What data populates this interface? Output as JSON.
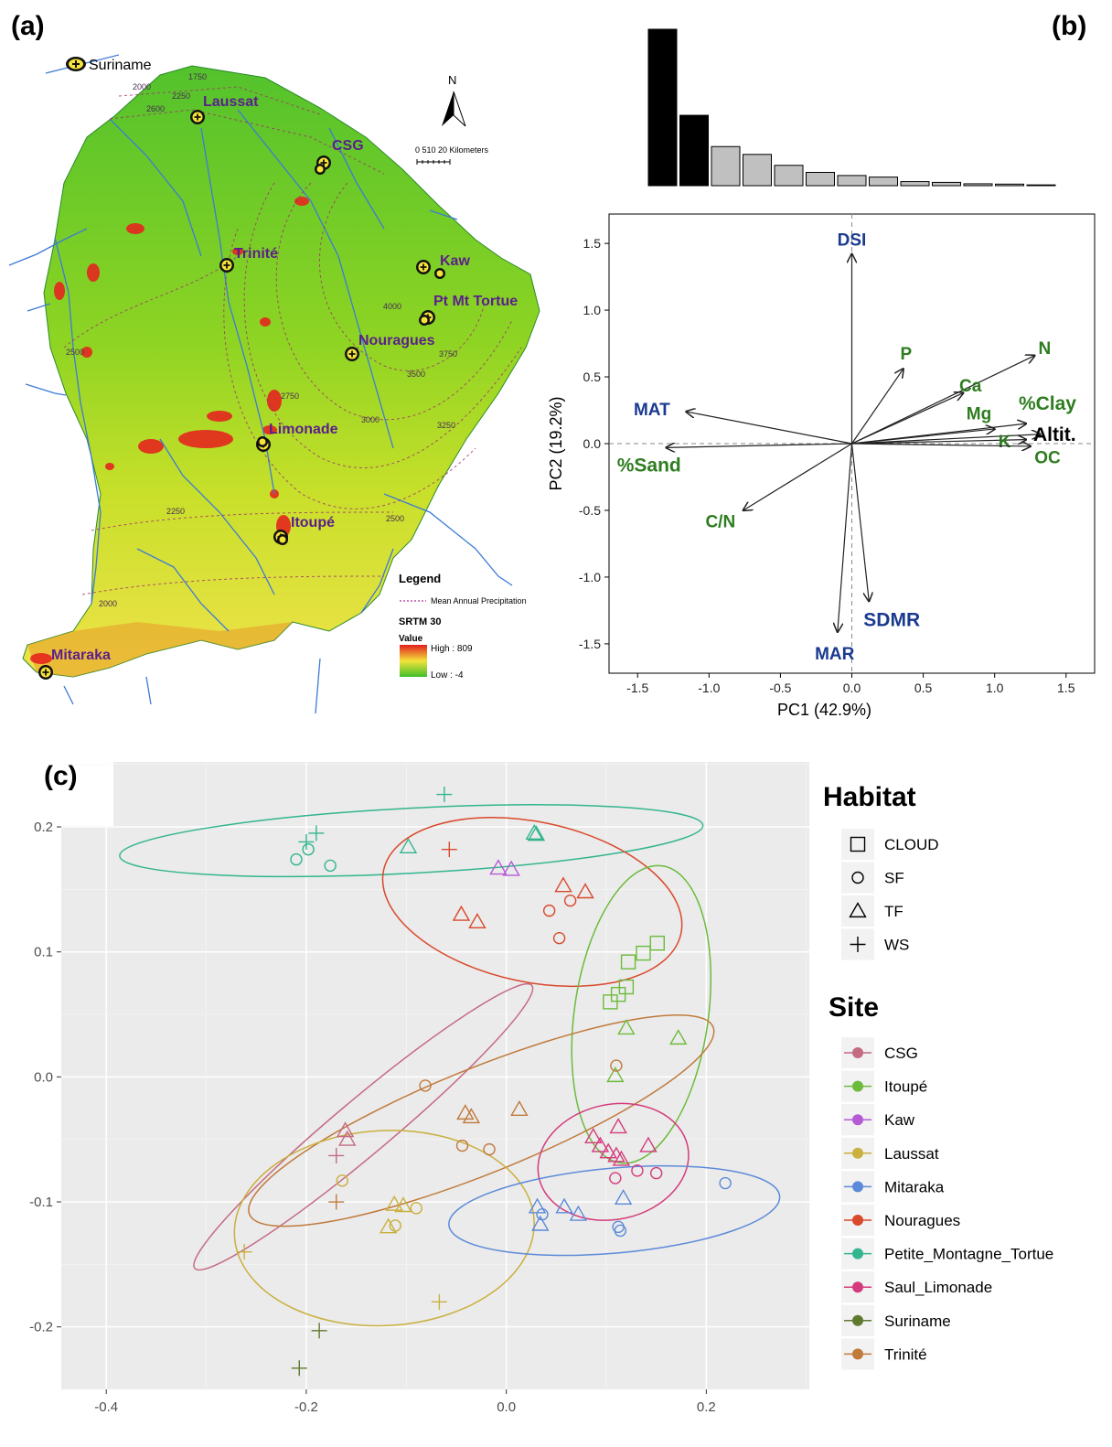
{
  "panels": {
    "a": {
      "letter": "(a)",
      "map": {
        "sites": [
          {
            "name": "Laussat",
            "color": "#5b1f8a"
          },
          {
            "name": "CSG",
            "color": "#5b1f8a"
          },
          {
            "name": "Trinité",
            "color": "#5b1f8a"
          },
          {
            "name": "Kaw",
            "color": "#5b1f8a"
          },
          {
            "name": "Pt Mt Tortue",
            "color": "#5b1f8a"
          },
          {
            "name": "Nouragues",
            "color": "#5b1f8a"
          },
          {
            "name": "Limonade",
            "color": "#5b1f8a"
          },
          {
            "name": "Itoupé",
            "color": "#5b1f8a"
          },
          {
            "name": "Mitaraka",
            "color": "#5b1f8a"
          }
        ],
        "suriname_label": "Suriname",
        "north_label": "N",
        "scale_label": "0 510  20  Kilometers",
        "contours": [
          "1750",
          "2000",
          "2250",
          "2600",
          "2500",
          "2750",
          "4000",
          "3750",
          "3500",
          "3000",
          "3250",
          "2250",
          "2500",
          "2000"
        ],
        "legend": {
          "title": "Legend",
          "line_label": "Mean Annual Precipitation",
          "raster_title": "SRTM 30",
          "value_label": "Value",
          "high_label": "High : 809",
          "low_label": "Low : -4"
        }
      }
    },
    "b": {
      "letter": "(b)",
      "scree": [
        1.0,
        0.45,
        0.25,
        0.2,
        0.13,
        0.085,
        0.065,
        0.055,
        0.026,
        0.021,
        0.012,
        0.01,
        0.005
      ],
      "scree_highlight": 2
    },
    "c": {
      "letter": "(c)"
    }
  },
  "chart_data": [
    {
      "type": "biplot",
      "xlabel": "PC1 (42.9%)",
      "ylabel": "PC2 (19.2%)",
      "xlim": [
        -1.7,
        1.7
      ],
      "ylim": [
        -1.72,
        1.72
      ],
      "xticks": [
        -1.5,
        -1.0,
        -0.5,
        0.0,
        0.5,
        1.0,
        1.5
      ],
      "yticks": [
        -1.5,
        -1.0,
        -0.5,
        0.0,
        0.5,
        1.0,
        1.5
      ],
      "vectors": [
        {
          "label": "DSI",
          "x": 0.0,
          "y": 1.42,
          "lx": 0.0,
          "ly": 1.53,
          "color": "#1a3a8f"
        },
        {
          "label": "P",
          "x": 0.36,
          "y": 0.56,
          "lx": 0.38,
          "ly": 0.68,
          "color": "#2e7d1f"
        },
        {
          "label": "N",
          "x": 1.28,
          "y": 0.66,
          "lx": 1.35,
          "ly": 0.72,
          "color": "#2e7d1f"
        },
        {
          "label": "Ca",
          "x": 0.78,
          "y": 0.38,
          "lx": 0.83,
          "ly": 0.44,
          "color": "#2e7d1f"
        },
        {
          "label": "%Clay",
          "x": 1.22,
          "y": 0.15,
          "lx": 1.37,
          "ly": 0.3,
          "color": "#2e7d1f"
        },
        {
          "label": "Mg",
          "x": 1.0,
          "y": 0.11,
          "lx": 0.89,
          "ly": 0.23,
          "color": "#2e7d1f"
        },
        {
          "label": "Altit.",
          "x": 1.32,
          "y": 0.07,
          "lx": 1.42,
          "ly": 0.07,
          "color": "#000000"
        },
        {
          "label": "K",
          "x": 1.22,
          "y": 0.03,
          "lx": 1.07,
          "ly": 0.02,
          "color": "#2e7d1f"
        },
        {
          "label": "OC",
          "x": 1.25,
          "y": -0.02,
          "lx": 1.37,
          "ly": -0.1,
          "color": "#2e7d1f"
        },
        {
          "label": "MAT",
          "x": -1.16,
          "y": 0.24,
          "lx": -1.4,
          "ly": 0.26,
          "color": "#1a3a8f"
        },
        {
          "label": "%Sand",
          "x": -1.3,
          "y": -0.03,
          "lx": -1.42,
          "ly": -0.16,
          "color": "#2e7d1f"
        },
        {
          "label": "C/N",
          "x": -0.76,
          "y": -0.5,
          "lx": -0.92,
          "ly": -0.58,
          "color": "#2e7d1f"
        },
        {
          "label": "SDMR",
          "x": 0.12,
          "y": -1.18,
          "lx": 0.28,
          "ly": -1.32,
          "color": "#1a3a8f"
        },
        {
          "label": "MAR",
          "x": -0.1,
          "y": -1.41,
          "lx": -0.12,
          "ly": -1.57,
          "color": "#1a3a8f"
        }
      ]
    },
    {
      "type": "scatter",
      "xlim": [
        -0.445,
        0.303
      ],
      "ylim": [
        -0.25,
        0.252
      ],
      "xticks": [
        -0.4,
        -0.2,
        0.0,
        0.2
      ],
      "xtick_labels": [
        "-0.4",
        "-0.2",
        "0.0",
        "0.2"
      ],
      "yticks": [
        -0.2,
        -0.1,
        0.0,
        0.1,
        0.2
      ],
      "ytick_labels": [
        "-0.2",
        "-0.1",
        "0.0",
        "0.1",
        "0.2"
      ],
      "legend_habitat": {
        "title": "Habitat",
        "items": [
          {
            "label": "CLOUD",
            "shape": "square"
          },
          {
            "label": "SF",
            "shape": "circle"
          },
          {
            "label": "TF",
            "shape": "triangle"
          },
          {
            "label": "WS",
            "shape": "plus"
          }
        ]
      },
      "legend_site": {
        "title": "Site",
        "items": [
          {
            "label": "CSG",
            "color": "#c56a83"
          },
          {
            "label": "Itoupé",
            "color": "#6cbb3c"
          },
          {
            "label": "Kaw",
            "color": "#b65ad6"
          },
          {
            "label": "Laussat",
            "color": "#c9b03f"
          },
          {
            "label": "Mitaraka",
            "color": "#5c8ad9"
          },
          {
            "label": "Nouragues",
            "color": "#d9492c"
          },
          {
            "label": "Petite_Montagne_Tortue",
            "color": "#33b58f"
          },
          {
            "label": "Saul_Limonade",
            "color": "#d43b7c"
          },
          {
            "label": "Suriname",
            "color": "#5f7a30"
          },
          {
            "label": "Trinité",
            "color": "#c07a3c"
          }
        ]
      },
      "ellipses": [
        {
          "site": "Petite_Montagne_Tortue",
          "cx": -0.095,
          "cy": 0.189,
          "rx": 0.292,
          "ry": 0.026,
          "angle": 3
        },
        {
          "site": "Nouragues",
          "cx": 0.026,
          "cy": 0.14,
          "rx": 0.152,
          "ry": 0.064,
          "angle": -12
        },
        {
          "site": "Itoupé",
          "cx": 0.135,
          "cy": 0.05,
          "rx": 0.067,
          "ry": 0.12,
          "angle": -8
        },
        {
          "site": "CSG",
          "cx": -0.143,
          "cy": -0.04,
          "rx": 0.22,
          "ry": 0.022,
          "angle": 40
        },
        {
          "site": "Trinité",
          "cx": -0.025,
          "cy": -0.035,
          "rx": 0.25,
          "ry": 0.042,
          "angle": 22
        },
        {
          "site": "Saul_Limonade",
          "cx": 0.107,
          "cy": -0.068,
          "rx": 0.076,
          "ry": 0.046,
          "angle": 12
        },
        {
          "site": "Laussat",
          "cx": -0.122,
          "cy": -0.121,
          "rx": 0.15,
          "ry": 0.078,
          "angle": 3
        },
        {
          "site": "Mitaraka",
          "cx": 0.108,
          "cy": -0.107,
          "rx": 0.166,
          "ry": 0.034,
          "angle": 5
        }
      ],
      "points": [
        {
          "site": "Petite_Montagne_Tortue",
          "shape": "circle",
          "x": -0.21,
          "y": 0.174
        },
        {
          "site": "Petite_Montagne_Tortue",
          "shape": "circle",
          "x": -0.198,
          "y": 0.182
        },
        {
          "site": "Petite_Montagne_Tortue",
          "shape": "circle",
          "x": -0.176,
          "y": 0.169
        },
        {
          "site": "Petite_Montagne_Tortue",
          "shape": "plus",
          "x": -0.2,
          "y": 0.188
        },
        {
          "site": "Petite_Montagne_Tortue",
          "shape": "plus",
          "x": -0.19,
          "y": 0.195
        },
        {
          "site": "Petite_Montagne_Tortue",
          "shape": "plus",
          "x": -0.062,
          "y": 0.226
        },
        {
          "site": "Petite_Montagne_Tortue",
          "shape": "triangle",
          "x": -0.098,
          "y": 0.184
        },
        {
          "site": "Petite_Montagne_Tortue",
          "shape": "triangle",
          "x": 0.028,
          "y": 0.195
        },
        {
          "site": "Petite_Montagne_Tortue",
          "shape": "triangle",
          "x": 0.03,
          "y": 0.194
        },
        {
          "site": "Nouragues",
          "shape": "plus",
          "x": -0.057,
          "y": 0.182
        },
        {
          "site": "Nouragues",
          "shape": "triangle",
          "x": -0.045,
          "y": 0.13
        },
        {
          "site": "Nouragues",
          "shape": "triangle",
          "x": -0.029,
          "y": 0.124
        },
        {
          "site": "Nouragues",
          "shape": "triangle",
          "x": 0.057,
          "y": 0.153
        },
        {
          "site": "Nouragues",
          "shape": "triangle",
          "x": 0.079,
          "y": 0.148
        },
        {
          "site": "Nouragues",
          "shape": "circle",
          "x": 0.043,
          "y": 0.133
        },
        {
          "site": "Nouragues",
          "shape": "circle",
          "x": 0.064,
          "y": 0.141
        },
        {
          "site": "Nouragues",
          "shape": "circle",
          "x": 0.053,
          "y": 0.111
        },
        {
          "site": "Kaw",
          "shape": "triangle",
          "x": -0.008,
          "y": 0.167
        },
        {
          "site": "Kaw",
          "shape": "triangle",
          "x": 0.005,
          "y": 0.166
        },
        {
          "site": "Itoupé",
          "shape": "square",
          "x": 0.104,
          "y": 0.06
        },
        {
          "site": "Itoupé",
          "shape": "square",
          "x": 0.112,
          "y": 0.066
        },
        {
          "site": "Itoupé",
          "shape": "square",
          "x": 0.12,
          "y": 0.072
        },
        {
          "site": "Itoupé",
          "shape": "square",
          "x": 0.122,
          "y": 0.092
        },
        {
          "site": "Itoupé",
          "shape": "square",
          "x": 0.137,
          "y": 0.099
        },
        {
          "site": "Itoupé",
          "shape": "square",
          "x": 0.151,
          "y": 0.107
        },
        {
          "site": "Itoupé",
          "shape": "triangle",
          "x": 0.12,
          "y": 0.039
        },
        {
          "site": "Itoupé",
          "shape": "triangle",
          "x": 0.172,
          "y": 0.031
        },
        {
          "site": "Itoupé",
          "shape": "triangle",
          "x": 0.109,
          "y": 0.001
        },
        {
          "site": "Trinité",
          "shape": "circle",
          "x": 0.11,
          "y": 0.009
        },
        {
          "site": "Trinité",
          "shape": "circle",
          "x": -0.081,
          "y": -0.007
        },
        {
          "site": "Trinité",
          "shape": "circle",
          "x": -0.044,
          "y": -0.055
        },
        {
          "site": "Trinité",
          "shape": "circle",
          "x": -0.017,
          "y": -0.058
        },
        {
          "site": "Trinité",
          "shape": "triangle",
          "x": -0.041,
          "y": -0.029
        },
        {
          "site": "Trinité",
          "shape": "triangle",
          "x": -0.035,
          "y": -0.032
        },
        {
          "site": "Trinité",
          "shape": "triangle",
          "x": 0.013,
          "y": -0.026
        },
        {
          "site": "Trinité",
          "shape": "plus",
          "x": -0.17,
          "y": -0.1
        },
        {
          "site": "CSG",
          "shape": "triangle",
          "x": -0.161,
          "y": -0.043
        },
        {
          "site": "CSG",
          "shape": "triangle",
          "x": -0.159,
          "y": -0.05
        },
        {
          "site": "CSG",
          "shape": "plus",
          "x": -0.17,
          "y": -0.063
        },
        {
          "site": "Laussat",
          "shape": "circle",
          "x": -0.164,
          "y": -0.083
        },
        {
          "site": "Laussat",
          "shape": "circle",
          "x": -0.111,
          "y": -0.119
        },
        {
          "site": "Laussat",
          "shape": "circle",
          "x": -0.09,
          "y": -0.105
        },
        {
          "site": "Laussat",
          "shape": "triangle",
          "x": -0.112,
          "y": -0.102
        },
        {
          "site": "Laussat",
          "shape": "triangle",
          "x": -0.103,
          "y": -0.103
        },
        {
          "site": "Laussat",
          "shape": "triangle",
          "x": -0.118,
          "y": -0.12
        },
        {
          "site": "Laussat",
          "shape": "plus",
          "x": -0.262,
          "y": -0.14
        },
        {
          "site": "Laussat",
          "shape": "plus",
          "x": -0.067,
          "y": -0.18
        },
        {
          "site": "Saul_Limonade",
          "shape": "triangle",
          "x": 0.087,
          "y": -0.048
        },
        {
          "site": "Saul_Limonade",
          "shape": "triangle",
          "x": 0.094,
          "y": -0.055
        },
        {
          "site": "Saul_Limonade",
          "shape": "triangle",
          "x": 0.102,
          "y": -0.06
        },
        {
          "site": "Saul_Limonade",
          "shape": "triangle",
          "x": 0.11,
          "y": -0.063
        },
        {
          "site": "Saul_Limonade",
          "shape": "triangle",
          "x": 0.115,
          "y": -0.066
        },
        {
          "site": "Saul_Limonade",
          "shape": "triangle",
          "x": 0.142,
          "y": -0.055
        },
        {
          "site": "Saul_Limonade",
          "shape": "triangle",
          "x": 0.112,
          "y": -0.04
        },
        {
          "site": "Saul_Limonade",
          "shape": "circle",
          "x": 0.109,
          "y": -0.081
        },
        {
          "site": "Saul_Limonade",
          "shape": "circle",
          "x": 0.131,
          "y": -0.075
        },
        {
          "site": "Saul_Limonade",
          "shape": "circle",
          "x": 0.15,
          "y": -0.077
        },
        {
          "site": "Mitaraka",
          "shape": "triangle",
          "x": 0.031,
          "y": -0.104
        },
        {
          "site": "Mitaraka",
          "shape": "triangle",
          "x": 0.058,
          "y": -0.104
        },
        {
          "site": "Mitaraka",
          "shape": "triangle",
          "x": 0.072,
          "y": -0.11
        },
        {
          "site": "Mitaraka",
          "shape": "triangle",
          "x": 0.117,
          "y": -0.097
        },
        {
          "site": "Mitaraka",
          "shape": "triangle",
          "x": 0.034,
          "y": -0.118
        },
        {
          "site": "Mitaraka",
          "shape": "circle",
          "x": 0.036,
          "y": -0.11
        },
        {
          "site": "Mitaraka",
          "shape": "circle",
          "x": 0.112,
          "y": -0.12
        },
        {
          "site": "Mitaraka",
          "shape": "circle",
          "x": 0.114,
          "y": -0.123
        },
        {
          "site": "Mitaraka",
          "shape": "circle",
          "x": 0.219,
          "y": -0.085
        },
        {
          "site": "Suriname",
          "shape": "plus",
          "x": -0.187,
          "y": -0.203
        },
        {
          "site": "Suriname",
          "shape": "plus",
          "x": -0.207,
          "y": -0.233
        }
      ]
    }
  ]
}
